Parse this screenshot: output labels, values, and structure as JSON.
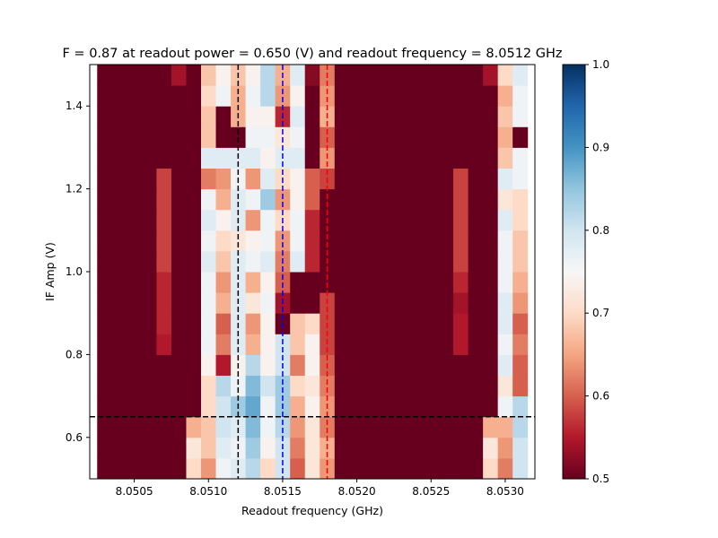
{
  "chart_data": {
    "type": "heatmap",
    "title": "F = 0.87 at readout power = 0.650 (V) and readout frequency = 8.0512 GHz",
    "xlabel": "Readout frequency (GHz)",
    "ylabel": "IF Amp (V)",
    "xlim": [
      8.0502,
      8.0532
    ],
    "ylim": [
      0.5,
      1.5
    ],
    "x_ticks": [
      8.0505,
      8.051,
      8.0515,
      8.052,
      8.0525,
      8.053
    ],
    "x_tick_labels": [
      "8.0505",
      "8.0510",
      "8.0515",
      "8.0520",
      "8.0525",
      "8.0530"
    ],
    "y_ticks": [
      0.6,
      0.8,
      1.0,
      1.2,
      1.4
    ],
    "y_tick_labels": [
      "0.6",
      "0.8",
      "1.0",
      "1.2",
      "1.4"
    ],
    "colormap": "RdBu",
    "colorbar": {
      "range": [
        0.5,
        1.0
      ],
      "ticks": [
        0.5,
        0.6,
        0.7,
        0.8,
        0.9,
        1.0
      ],
      "tick_labels": [
        "0.5",
        "0.6",
        "0.7",
        "0.8",
        "0.9",
        "1.0"
      ]
    },
    "x_centers": [
      8.0503,
      8.0504,
      8.0505,
      8.0506,
      8.0507,
      8.0508,
      8.0509,
      8.051,
      8.0511,
      8.0512,
      8.0513,
      8.0514,
      8.0515,
      8.0516,
      8.0517,
      8.0518,
      8.0519,
      8.052,
      8.0521,
      8.0522,
      8.0523,
      8.0524,
      8.0525,
      8.0526,
      8.0527,
      8.0528,
      8.0529,
      8.053,
      8.0531
    ],
    "y_centers": [
      0.525,
      0.575,
      0.625,
      0.675,
      0.725,
      0.775,
      0.825,
      0.875,
      0.925,
      0.975,
      1.025,
      1.075,
      1.125,
      1.175,
      1.225,
      1.275,
      1.325,
      1.375,
      1.425,
      1.475
    ],
    "z": [
      [
        0.5,
        0.5,
        0.5,
        0.5,
        0.5,
        0.5,
        0.7,
        0.64,
        0.76,
        0.78,
        0.82,
        0.7,
        0.8,
        0.6,
        0.72,
        0.64,
        0.5,
        0.5,
        0.5,
        0.5,
        0.5,
        0.5,
        0.5,
        0.5,
        0.5,
        0.5,
        0.7,
        0.62,
        0.8
      ],
      [
        0.5,
        0.5,
        0.5,
        0.5,
        0.5,
        0.5,
        0.72,
        0.68,
        0.78,
        0.76,
        0.84,
        0.74,
        0.8,
        0.62,
        0.72,
        0.66,
        0.5,
        0.5,
        0.5,
        0.5,
        0.5,
        0.5,
        0.5,
        0.5,
        0.5,
        0.5,
        0.72,
        0.64,
        0.8
      ],
      [
        0.5,
        0.5,
        0.5,
        0.5,
        0.5,
        0.5,
        0.66,
        0.68,
        0.8,
        0.78,
        0.86,
        0.76,
        0.82,
        0.64,
        0.72,
        0.62,
        0.5,
        0.5,
        0.5,
        0.5,
        0.5,
        0.5,
        0.5,
        0.5,
        0.5,
        0.5,
        0.66,
        0.66,
        0.82
      ],
      [
        0.5,
        0.5,
        0.5,
        0.5,
        0.5,
        0.5,
        0.5,
        0.7,
        0.8,
        0.84,
        0.88,
        0.76,
        0.84,
        0.66,
        0.74,
        0.64,
        0.5,
        0.5,
        0.5,
        0.5,
        0.5,
        0.5,
        0.5,
        0.5,
        0.5,
        0.5,
        0.5,
        0.76,
        0.82
      ],
      [
        0.5,
        0.5,
        0.5,
        0.5,
        0.5,
        0.5,
        0.5,
        0.7,
        0.82,
        0.76,
        0.86,
        0.8,
        0.84,
        0.7,
        0.72,
        0.62,
        0.5,
        0.5,
        0.5,
        0.5,
        0.5,
        0.5,
        0.5,
        0.5,
        0.5,
        0.5,
        0.5,
        0.72,
        0.6
      ],
      [
        0.5,
        0.5,
        0.5,
        0.5,
        0.5,
        0.5,
        0.5,
        0.74,
        0.55,
        0.74,
        0.82,
        0.74,
        0.8,
        0.62,
        0.74,
        0.6,
        0.5,
        0.5,
        0.5,
        0.5,
        0.5,
        0.5,
        0.5,
        0.5,
        0.5,
        0.5,
        0.5,
        0.78,
        0.6
      ],
      [
        0.5,
        0.5,
        0.5,
        0.5,
        0.55,
        0.5,
        0.5,
        0.76,
        0.62,
        0.78,
        0.66,
        0.74,
        0.8,
        0.68,
        0.74,
        0.58,
        0.5,
        0.5,
        0.5,
        0.5,
        0.5,
        0.5,
        0.5,
        0.5,
        0.55,
        0.5,
        0.5,
        0.76,
        0.62
      ],
      [
        0.5,
        0.5,
        0.5,
        0.5,
        0.56,
        0.5,
        0.5,
        0.76,
        0.6,
        0.78,
        0.64,
        0.74,
        0.5,
        0.68,
        0.7,
        0.58,
        0.5,
        0.5,
        0.5,
        0.5,
        0.5,
        0.5,
        0.5,
        0.5,
        0.55,
        0.5,
        0.5,
        0.78,
        0.6
      ],
      [
        0.5,
        0.5,
        0.5,
        0.5,
        0.56,
        0.5,
        0.5,
        0.76,
        0.66,
        0.78,
        0.72,
        0.76,
        0.54,
        0.5,
        0.5,
        0.58,
        0.5,
        0.5,
        0.5,
        0.5,
        0.5,
        0.5,
        0.5,
        0.5,
        0.54,
        0.5,
        0.5,
        0.78,
        0.64
      ],
      [
        0.5,
        0.5,
        0.5,
        0.5,
        0.56,
        0.5,
        0.5,
        0.76,
        0.64,
        0.78,
        0.66,
        0.74,
        0.6,
        0.5,
        0.5,
        0.5,
        0.5,
        0.5,
        0.5,
        0.5,
        0.5,
        0.5,
        0.5,
        0.5,
        0.56,
        0.5,
        0.5,
        0.76,
        0.66
      ],
      [
        0.5,
        0.5,
        0.5,
        0.5,
        0.58,
        0.5,
        0.5,
        0.78,
        0.68,
        0.78,
        0.76,
        0.78,
        0.62,
        0.78,
        0.56,
        0.5,
        0.5,
        0.5,
        0.5,
        0.5,
        0.5,
        0.5,
        0.5,
        0.5,
        0.58,
        0.5,
        0.5,
        0.76,
        0.68
      ],
      [
        0.5,
        0.5,
        0.5,
        0.5,
        0.58,
        0.5,
        0.5,
        0.76,
        0.7,
        0.72,
        0.74,
        0.76,
        0.64,
        0.76,
        0.56,
        0.5,
        0.5,
        0.5,
        0.5,
        0.5,
        0.5,
        0.5,
        0.5,
        0.5,
        0.58,
        0.5,
        0.5,
        0.76,
        0.68
      ],
      [
        0.5,
        0.5,
        0.5,
        0.5,
        0.58,
        0.5,
        0.5,
        0.78,
        0.74,
        0.78,
        0.64,
        0.76,
        0.7,
        0.76,
        0.56,
        0.5,
        0.5,
        0.5,
        0.5,
        0.5,
        0.5,
        0.5,
        0.5,
        0.5,
        0.58,
        0.5,
        0.5,
        0.78,
        0.7
      ],
      [
        0.5,
        0.5,
        0.5,
        0.5,
        0.58,
        0.5,
        0.5,
        0.76,
        0.66,
        0.78,
        0.76,
        0.84,
        0.64,
        0.74,
        0.6,
        0.5,
        0.5,
        0.5,
        0.5,
        0.5,
        0.5,
        0.5,
        0.5,
        0.5,
        0.58,
        0.5,
        0.5,
        0.72,
        0.7
      ],
      [
        0.5,
        0.5,
        0.5,
        0.5,
        0.58,
        0.5,
        0.5,
        0.62,
        0.64,
        0.76,
        0.64,
        0.78,
        0.7,
        0.74,
        0.6,
        0.58,
        0.5,
        0.5,
        0.5,
        0.5,
        0.5,
        0.5,
        0.5,
        0.5,
        0.58,
        0.5,
        0.5,
        0.78,
        0.76
      ],
      [
        0.5,
        0.5,
        0.5,
        0.5,
        0.5,
        0.5,
        0.5,
        0.78,
        0.78,
        0.78,
        0.78,
        0.74,
        0.78,
        0.78,
        0.5,
        0.64,
        0.5,
        0.5,
        0.5,
        0.5,
        0.5,
        0.5,
        0.5,
        0.5,
        0.5,
        0.5,
        0.5,
        0.68,
        0.76
      ],
      [
        0.5,
        0.5,
        0.5,
        0.5,
        0.5,
        0.5,
        0.5,
        0.68,
        0.5,
        0.5,
        0.76,
        0.76,
        0.72,
        0.76,
        0.5,
        0.6,
        0.5,
        0.5,
        0.5,
        0.5,
        0.5,
        0.5,
        0.5,
        0.5,
        0.5,
        0.5,
        0.5,
        0.66,
        0.5
      ],
      [
        0.5,
        0.5,
        0.5,
        0.5,
        0.5,
        0.5,
        0.5,
        0.68,
        0.5,
        0.66,
        0.74,
        0.74,
        0.56,
        0.78,
        0.5,
        0.66,
        0.5,
        0.5,
        0.5,
        0.5,
        0.5,
        0.5,
        0.5,
        0.5,
        0.5,
        0.5,
        0.5,
        0.68,
        0.76
      ],
      [
        0.5,
        0.5,
        0.5,
        0.5,
        0.5,
        0.5,
        0.5,
        0.7,
        0.76,
        0.66,
        0.76,
        0.82,
        0.64,
        0.74,
        0.5,
        0.64,
        0.5,
        0.5,
        0.5,
        0.5,
        0.5,
        0.5,
        0.5,
        0.5,
        0.5,
        0.5,
        0.5,
        0.66,
        0.76
      ],
      [
        0.5,
        0.5,
        0.5,
        0.5,
        0.5,
        0.54,
        0.5,
        0.68,
        0.74,
        0.68,
        0.74,
        0.82,
        0.66,
        0.78,
        0.52,
        0.62,
        0.5,
        0.5,
        0.5,
        0.5,
        0.5,
        0.5,
        0.5,
        0.5,
        0.5,
        0.5,
        0.54,
        0.7,
        0.78
      ]
    ],
    "lines": [
      {
        "orientation": "vertical",
        "x": 8.0512,
        "color": "#000000",
        "style": "dashed"
      },
      {
        "orientation": "vertical",
        "x": 8.0515,
        "color": "#0000ff",
        "style": "dashed"
      },
      {
        "orientation": "vertical",
        "x": 8.0518,
        "color": "#ff0000",
        "style": "dashed"
      },
      {
        "orientation": "horizontal",
        "y": 0.65,
        "color": "#000000",
        "style": "dashed"
      }
    ]
  }
}
